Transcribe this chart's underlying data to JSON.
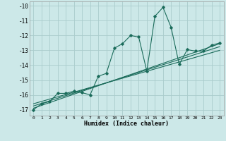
{
  "title": "",
  "xlabel": "Humidex (Indice chaleur)",
  "background_color": "#cce8e8",
  "grid_color": "#aacccc",
  "line_color": "#1a6b5a",
  "xlim": [
    -0.5,
    23.5
  ],
  "ylim": [
    -17.4,
    -9.7
  ],
  "xticks": [
    0,
    1,
    2,
    3,
    4,
    5,
    6,
    7,
    8,
    9,
    10,
    11,
    12,
    13,
    14,
    15,
    16,
    17,
    18,
    19,
    20,
    21,
    22,
    23
  ],
  "yticks": [
    -17,
    -16,
    -15,
    -14,
    -13,
    -12,
    -11,
    -10
  ],
  "series1_x": [
    0,
    1,
    2,
    3,
    4,
    5,
    6,
    7,
    8,
    9,
    10,
    11,
    12,
    13,
    14,
    15,
    16,
    17,
    18,
    19,
    20,
    21,
    22,
    23
  ],
  "series1_y": [
    -17.0,
    -16.6,
    -16.45,
    -15.9,
    -15.9,
    -15.75,
    -15.85,
    -16.0,
    -14.75,
    -14.55,
    -12.85,
    -12.55,
    -12.0,
    -12.1,
    -14.4,
    -10.7,
    -10.1,
    -11.45,
    -13.95,
    -12.95,
    -13.05,
    -13.05,
    -12.65,
    -12.5
  ],
  "trend1_x": [
    0,
    23
  ],
  "trend1_y": [
    -16.9,
    -12.55
  ],
  "trend2_x": [
    0,
    23
  ],
  "trend2_y": [
    -16.75,
    -12.75
  ],
  "trend3_x": [
    0,
    23
  ],
  "trend3_y": [
    -16.6,
    -13.0
  ]
}
